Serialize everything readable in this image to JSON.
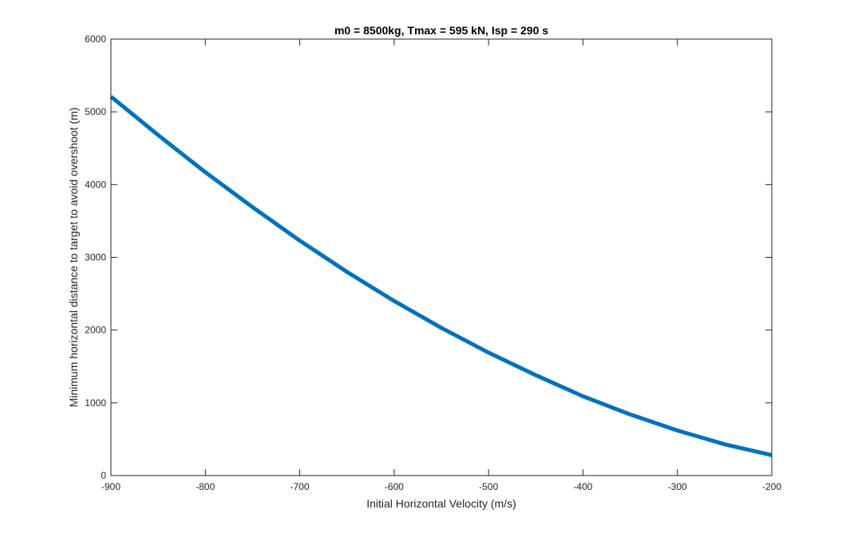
{
  "chart_data": {
    "type": "line",
    "title": "m0 = 8500kg, Tmax = 595 kN, Isp = 290 s",
    "xlabel": "Initial Horizontal Velocity (m/s)",
    "ylabel": "Minimum horizontal distance to target to avoid overshoot (m)",
    "xlim": [
      -900,
      -200
    ],
    "ylim": [
      0,
      6000
    ],
    "xticks": [
      -900,
      -800,
      -700,
      -600,
      -500,
      -400,
      -300,
      -200
    ],
    "yticks": [
      0,
      1000,
      2000,
      3000,
      4000,
      5000,
      6000
    ],
    "grid": false,
    "box": true,
    "series_color": "#0072BD",
    "axis_color": "#262626",
    "series": [
      {
        "x": [
          -900,
          -850,
          -800,
          -750,
          -700,
          -650,
          -600,
          -550,
          -500,
          -450,
          -400,
          -350,
          -300,
          -250,
          -200
        ],
        "y": [
          5210,
          4680,
          4170,
          3690,
          3230,
          2800,
          2400,
          2030,
          1690,
          1380,
          1090,
          840,
          620,
          430,
          280
        ]
      }
    ]
  }
}
